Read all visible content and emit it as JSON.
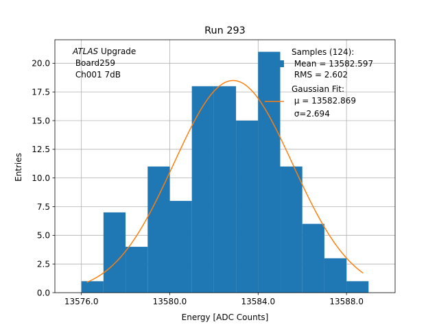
{
  "chart_data": {
    "type": "bar",
    "title": "Run 293",
    "xlabel": "Energy [ADC Counts]",
    "ylabel": "Entries",
    "xlim": [
      13574.8,
      13590.2
    ],
    "ylim": [
      0,
      22.05
    ],
    "xticks": [
      13576.0,
      13580.0,
      13584.0,
      13588.0
    ],
    "xtick_labels": [
      "13576.0",
      "13580.0",
      "13584.0",
      "13588.0"
    ],
    "yticks": [
      0,
      2.5,
      5,
      7.5,
      10,
      12.5,
      15,
      17.5,
      20
    ],
    "ytick_labels": [
      "0.0",
      "2.5",
      "5.0",
      "7.5",
      "10.0",
      "12.5",
      "15.0",
      "17.5",
      "20.0"
    ],
    "grid": true,
    "histogram": {
      "bin_edges": [
        13576,
        13577,
        13578,
        13579,
        13580,
        13581,
        13582,
        13583,
        13584,
        13585,
        13586,
        13587,
        13588,
        13589
      ],
      "counts": [
        1,
        7,
        4,
        11,
        8,
        18,
        18,
        15,
        21,
        11,
        6,
        3,
        1
      ],
      "color": "#1f77b4"
    },
    "fit": {
      "type": "gaussian",
      "mu": 13582.869,
      "sigma": 2.694,
      "amplitude": 18.5,
      "x_range": [
        13576.25,
        13588.75
      ],
      "color": "#ff7f0e"
    },
    "annotation": {
      "italic": "ATLAS",
      "rest": " Upgrade",
      "line2": " Board259",
      "line3": " Ch001 7dB"
    },
    "legend": {
      "position": "upper-right",
      "samples": {
        "line1": "Samples (124):",
        "line2": " Mean = 13582.597",
        "line3": " RMS = 2.602"
      },
      "fit": {
        "line1": "Gaussian Fit:",
        "line2": " μ = 13582.869",
        "line3": " σ=2.694"
      }
    }
  }
}
